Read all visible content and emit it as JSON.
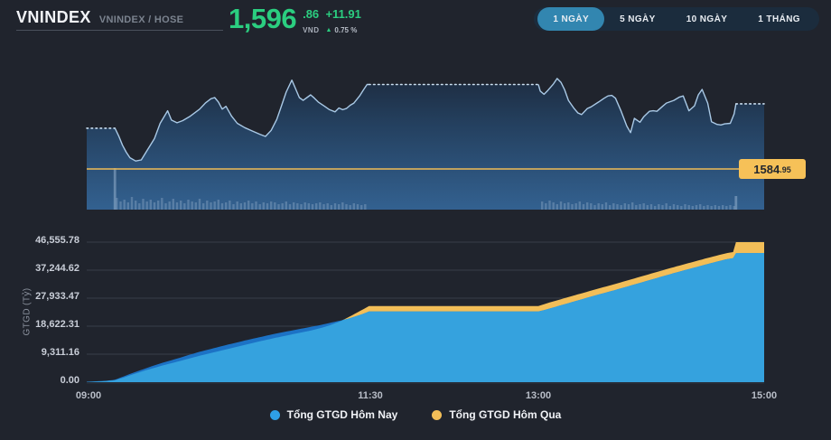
{
  "header": {
    "title": "VNINDEX",
    "subtitle": "VNINDEX / HOSE",
    "price": {
      "int": "1,596",
      "dec": ".86",
      "unit": "VND",
      "change": "+11.91",
      "arrow": "▲",
      "change_pct": "0.75 %"
    }
  },
  "range_buttons": {
    "items": [
      {
        "label": "1 NGÀY",
        "active": true
      },
      {
        "label": "5 NGÀY",
        "active": false
      },
      {
        "label": "10 NGÀY",
        "active": false
      },
      {
        "label": "1 THÁNG",
        "active": false
      }
    ]
  },
  "colors": {
    "up_green": "#2BCE80",
    "ref_yellow": "#F0BC55",
    "today_blue": "#2E9FE6",
    "yesterday_yellow": "#F2BE58",
    "index_line": "#A9C9E6"
  },
  "chart_data": [
    {
      "type": "line",
      "name": "vnindex-intraday",
      "x_unit": "minutes from 09:00",
      "xticks": [
        {
          "label": "09:00",
          "t": 0
        },
        {
          "label": "11:30",
          "t": 150
        },
        {
          "label": "13:00",
          "t": 240
        },
        {
          "label": "15:00",
          "t": 360
        }
      ],
      "ylim": [
        1577.4,
        1605.8
      ],
      "open": 1592.4,
      "high": 1601.5,
      "low": 1586.4,
      "close": 1596.86,
      "ref_value": 1584.95,
      "ref_label": {
        "main": "1584",
        "dec": ".95"
      },
      "segments": [
        {
          "from": 0,
          "to": 15,
          "style": "dotted"
        },
        {
          "from": 15,
          "to": 150,
          "style": "solid"
        },
        {
          "from": 150,
          "to": 240,
          "style": "dotted"
        },
        {
          "from": 240,
          "to": 345,
          "style": "solid"
        },
        {
          "from": 345,
          "to": 360,
          "style": "dotted"
        }
      ],
      "points": [
        [
          0,
          1592.4
        ],
        [
          15,
          1592.4
        ],
        [
          17,
          1591.0
        ],
        [
          19,
          1589.3
        ],
        [
          21,
          1588.0
        ],
        [
          23,
          1587.0
        ],
        [
          26,
          1586.4
        ],
        [
          29,
          1586.6
        ],
        [
          32,
          1588.3
        ],
        [
          36,
          1590.5
        ],
        [
          39,
          1593.3
        ],
        [
          43,
          1595.6
        ],
        [
          45,
          1593.9
        ],
        [
          48,
          1593.4
        ],
        [
          51,
          1593.8
        ],
        [
          55,
          1594.6
        ],
        [
          60,
          1595.9
        ],
        [
          63,
          1597.0
        ],
        [
          66,
          1597.8
        ],
        [
          68,
          1598.0
        ],
        [
          70,
          1597.2
        ],
        [
          72,
          1595.9
        ],
        [
          74,
          1596.4
        ],
        [
          77,
          1594.6
        ],
        [
          80,
          1593.3
        ],
        [
          84,
          1592.5
        ],
        [
          88,
          1591.9
        ],
        [
          92,
          1591.3
        ],
        [
          95,
          1590.9
        ],
        [
          98,
          1592.0
        ],
        [
          101,
          1594.0
        ],
        [
          103,
          1596.0
        ],
        [
          106,
          1599.0
        ],
        [
          109,
          1601.2
        ],
        [
          111,
          1599.6
        ],
        [
          113,
          1598.0
        ],
        [
          115,
          1597.5
        ],
        [
          117,
          1598.0
        ],
        [
          119,
          1598.5
        ],
        [
          121,
          1597.9
        ],
        [
          123,
          1597.2
        ],
        [
          126,
          1596.5
        ],
        [
          129,
          1595.8
        ],
        [
          132,
          1595.4
        ],
        [
          134,
          1596.1
        ],
        [
          136,
          1595.8
        ],
        [
          138,
          1596.0
        ],
        [
          140,
          1596.6
        ],
        [
          142,
          1597.0
        ],
        [
          145,
          1598.3
        ],
        [
          147,
          1599.4
        ],
        [
          149,
          1600.4
        ],
        [
          150,
          1600.4
        ],
        [
          240,
          1600.4
        ],
        [
          241,
          1599.2
        ],
        [
          243,
          1598.6
        ],
        [
          245,
          1599.3
        ],
        [
          248,
          1600.5
        ],
        [
          250,
          1601.5
        ],
        [
          252,
          1600.8
        ],
        [
          254,
          1599.4
        ],
        [
          256,
          1597.5
        ],
        [
          259,
          1596.0
        ],
        [
          261,
          1595.2
        ],
        [
          263,
          1594.9
        ],
        [
          266,
          1596.0
        ],
        [
          268,
          1596.3
        ],
        [
          272,
          1597.2
        ],
        [
          275,
          1597.9
        ],
        [
          277,
          1598.3
        ],
        [
          279,
          1598.4
        ],
        [
          281,
          1597.9
        ],
        [
          284,
          1595.5
        ],
        [
          287,
          1592.8
        ],
        [
          289,
          1591.6
        ],
        [
          291,
          1594.2
        ],
        [
          294,
          1593.5
        ],
        [
          296,
          1594.5
        ],
        [
          299,
          1595.5
        ],
        [
          301,
          1595.6
        ],
        [
          303,
          1595.5
        ],
        [
          306,
          1596.4
        ],
        [
          308,
          1597.0
        ],
        [
          312,
          1597.5
        ],
        [
          315,
          1598.1
        ],
        [
          317,
          1598.3
        ],
        [
          320,
          1595.6
        ],
        [
          323,
          1596.5
        ],
        [
          325,
          1598.5
        ],
        [
          327,
          1599.5
        ],
        [
          330,
          1597.0
        ],
        [
          332,
          1593.6
        ],
        [
          335,
          1593.1
        ],
        [
          337,
          1593.0
        ],
        [
          339,
          1593.2
        ],
        [
          342,
          1593.3
        ],
        [
          344,
          1595.0
        ],
        [
          345,
          1596.86
        ],
        [
          360,
          1596.86
        ]
      ],
      "volume_groups": [
        {
          "start": 16,
          "step": 2,
          "heights": [
            13,
            9,
            11,
            8,
            14,
            10,
            7,
            12,
            9,
            11,
            8,
            10,
            13,
            7,
            9,
            12,
            8,
            10,
            7,
            11,
            9,
            8,
            12,
            7,
            10,
            8,
            9,
            11,
            7,
            8,
            10,
            6,
            9,
            7,
            8,
            10,
            7,
            9,
            6,
            8,
            7,
            9,
            8,
            6,
            7,
            9,
            6,
            8,
            7,
            6,
            8,
            7,
            6,
            7,
            8,
            6,
            7,
            5,
            7,
            6,
            8,
            6,
            5,
            7,
            6,
            5,
            6
          ]
        },
        {
          "start": 242,
          "step": 2,
          "heights": [
            9,
            7,
            10,
            8,
            6,
            9,
            7,
            8,
            6,
            7,
            9,
            6,
            8,
            7,
            5,
            7,
            6,
            8,
            5,
            7,
            6,
            5,
            7,
            6,
            8,
            5,
            6,
            7,
            5,
            6,
            4,
            6,
            5,
            7,
            4,
            6,
            5,
            4,
            6,
            5,
            4,
            5,
            6,
            4,
            5,
            4,
            5,
            4,
            5,
            4,
            5,
            4
          ]
        }
      ],
      "volume_spikes": [
        [
          15,
          46
        ],
        [
          345,
          15
        ]
      ]
    },
    {
      "type": "area",
      "name": "cumulative-gtgd",
      "ylabel": "GTGD (Tỷ)",
      "ylim": [
        0,
        46555.78
      ],
      "yticks": [
        {
          "label": "0.00",
          "value": 0
        },
        {
          "label": "9,311.16",
          "value": 9311.16
        },
        {
          "label": "18,622.31",
          "value": 18622.31
        },
        {
          "label": "27,933.47",
          "value": 27933.47
        },
        {
          "label": "37,244.62",
          "value": 37244.62
        },
        {
          "label": "46,555.78",
          "value": 46555.78
        }
      ],
      "series": [
        {
          "name": "Tổng GTGD Hôm Nay",
          "color": "#2E9FE6",
          "points": [
            [
              0,
              150
            ],
            [
              5,
              300
            ],
            [
              10,
              450
            ],
            [
              15,
              800
            ],
            [
              20,
              2000
            ],
            [
              25,
              3200
            ],
            [
              30,
              4300
            ],
            [
              35,
              5400
            ],
            [
              40,
              6400
            ],
            [
              45,
              7300
            ],
            [
              50,
              8200
            ],
            [
              55,
              9200
            ],
            [
              60,
              10100
            ],
            [
              65,
              10900
            ],
            [
              70,
              11700
            ],
            [
              75,
              12500
            ],
            [
              80,
              13200
            ],
            [
              85,
              14000
            ],
            [
              90,
              14700
            ],
            [
              95,
              15400
            ],
            [
              100,
              16100
            ],
            [
              105,
              16700
            ],
            [
              110,
              17300
            ],
            [
              115,
              17900
            ],
            [
              120,
              18500
            ],
            [
              125,
              19100
            ],
            [
              130,
              19800
            ],
            [
              135,
              20500
            ],
            [
              140,
              21300
            ],
            [
              145,
              22300
            ],
            [
              150,
              23500
            ],
            [
              240,
              23500
            ],
            [
              245,
              24300
            ],
            [
              250,
              25200
            ],
            [
              255,
              26100
            ],
            [
              260,
              27000
            ],
            [
              265,
              27900
            ],
            [
              270,
              28800
            ],
            [
              275,
              29650
            ],
            [
              280,
              30500
            ],
            [
              285,
              31400
            ],
            [
              290,
              32300
            ],
            [
              295,
              33200
            ],
            [
              300,
              34100
            ],
            [
              305,
              35000
            ],
            [
              310,
              35900
            ],
            [
              315,
              36750
            ],
            [
              320,
              37600
            ],
            [
              325,
              38450
            ],
            [
              330,
              39300
            ],
            [
              335,
              40100
            ],
            [
              340,
              40900
            ],
            [
              344,
              41300
            ],
            [
              345,
              42900
            ],
            [
              360,
              42950
            ]
          ]
        },
        {
          "name": "Tổng GTGD Hôm Qua",
          "color": "#F2BE58",
          "points": [
            [
              0,
              100
            ],
            [
              5,
              200
            ],
            [
              10,
              350
            ],
            [
              15,
              650
            ],
            [
              20,
              1600
            ],
            [
              25,
              2700
            ],
            [
              30,
              3700
            ],
            [
              35,
              4600
            ],
            [
              40,
              5500
            ],
            [
              45,
              6300
            ],
            [
              50,
              7100
            ],
            [
              55,
              7950
            ],
            [
              60,
              8800
            ],
            [
              65,
              9550
            ],
            [
              70,
              10300
            ],
            [
              75,
              11050
            ],
            [
              80,
              11800
            ],
            [
              85,
              12550
            ],
            [
              90,
              13300
            ],
            [
              95,
              14000
            ],
            [
              100,
              14700
            ],
            [
              105,
              15350
            ],
            [
              110,
              16000
            ],
            [
              115,
              16650
            ],
            [
              120,
              17300
            ],
            [
              125,
              18100
            ],
            [
              130,
              19100
            ],
            [
              135,
              20300
            ],
            [
              140,
              21900
            ],
            [
              145,
              23600
            ],
            [
              150,
              25300
            ],
            [
              240,
              25300
            ],
            [
              245,
              26300
            ],
            [
              250,
              27200
            ],
            [
              255,
              28100
            ],
            [
              260,
              29000
            ],
            [
              265,
              29900
            ],
            [
              270,
              30800
            ],
            [
              275,
              31650
            ],
            [
              280,
              32500
            ],
            [
              285,
              33400
            ],
            [
              290,
              34300
            ],
            [
              295,
              35200
            ],
            [
              300,
              36100
            ],
            [
              305,
              37000
            ],
            [
              310,
              37900
            ],
            [
              315,
              38750
            ],
            [
              320,
              39600
            ],
            [
              325,
              40450
            ],
            [
              330,
              41300
            ],
            [
              335,
              42100
            ],
            [
              340,
              42900
            ],
            [
              344,
              43300
            ],
            [
              345,
              46555.78
            ],
            [
              360,
              46555.78
            ]
          ]
        }
      ]
    }
  ]
}
